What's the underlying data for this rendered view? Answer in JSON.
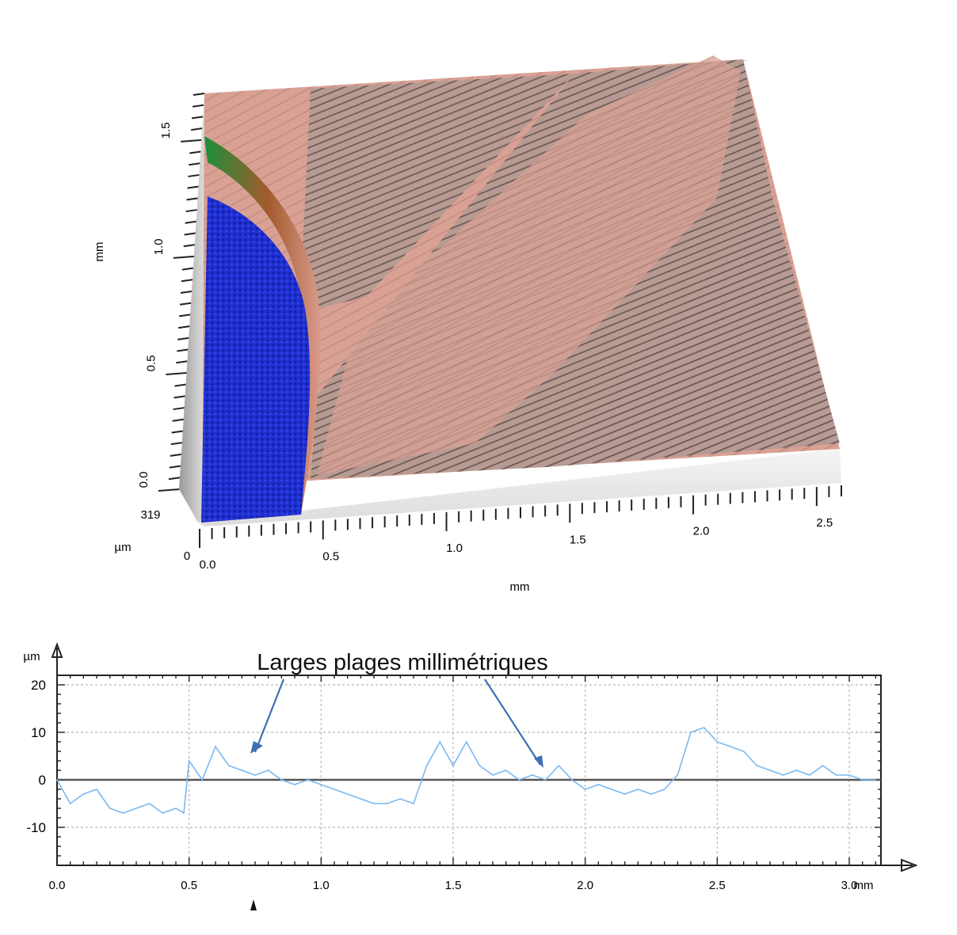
{
  "chart_data": [
    {
      "type": "surface-3d",
      "xlabel": "mm",
      "ylabel": "mm",
      "zlabel": "µm",
      "x_ticks": [
        "0.0",
        "0.5",
        "1.0",
        "1.5",
        "2.0",
        "2.5"
      ],
      "y_ticks": [
        "0.0",
        "0.5",
        "1.0",
        "1.5"
      ],
      "z_ticks": [
        "0",
        "319"
      ],
      "xlim": [
        0,
        2.6
      ],
      "ylim": [
        0,
        1.7
      ],
      "zlim": [
        0,
        319
      ],
      "colors": {
        "low": "#1f2fd0",
        "high": "#d9a093",
        "stripe": "#a98f88"
      }
    },
    {
      "type": "line",
      "annotation": "Larges plages millimétriques",
      "ylabel": "µm",
      "xunit": "mm",
      "x_ticks": [
        "0.0",
        "0.5",
        "1.0",
        "1.5",
        "2.0",
        "2.5",
        "3.0"
      ],
      "y_ticks": [
        "20",
        "10",
        "0",
        "-10"
      ],
      "xlim": [
        0,
        3.12
      ],
      "ylim": [
        -18,
        22
      ],
      "grid": true,
      "line_color": "#7ab8f0",
      "x": [
        0.0,
        0.05,
        0.1,
        0.15,
        0.2,
        0.25,
        0.3,
        0.35,
        0.4,
        0.45,
        0.48,
        0.5,
        0.55,
        0.6,
        0.65,
        0.7,
        0.75,
        0.8,
        0.85,
        0.9,
        0.95,
        1.0,
        1.05,
        1.1,
        1.15,
        1.2,
        1.25,
        1.3,
        1.35,
        1.4,
        1.45,
        1.5,
        1.55,
        1.6,
        1.65,
        1.7,
        1.75,
        1.8,
        1.85,
        1.9,
        1.95,
        2.0,
        2.05,
        2.1,
        2.15,
        2.2,
        2.25,
        2.3,
        2.35,
        2.4,
        2.45,
        2.5,
        2.55,
        2.6,
        2.65,
        2.7,
        2.75,
        2.8,
        2.85,
        2.9,
        2.95,
        3.0,
        3.05,
        3.1
      ],
      "y": [
        0,
        -5,
        -3,
        -2,
        -6,
        -7,
        -6,
        -5,
        -7,
        -6,
        -7,
        4,
        0,
        7,
        3,
        2,
        1,
        2,
        0,
        -1,
        0,
        -1,
        -2,
        -3,
        -4,
        -5,
        -5,
        -4,
        -5,
        3,
        8,
        3,
        8,
        3,
        1,
        2,
        0,
        1,
        0,
        3,
        0,
        -2,
        -1,
        -2,
        -3,
        -2,
        -3,
        -2,
        1,
        10,
        11,
        8,
        7,
        6,
        3,
        2,
        1,
        2,
        1,
        3,
        1,
        1,
        0,
        0
      ]
    }
  ]
}
